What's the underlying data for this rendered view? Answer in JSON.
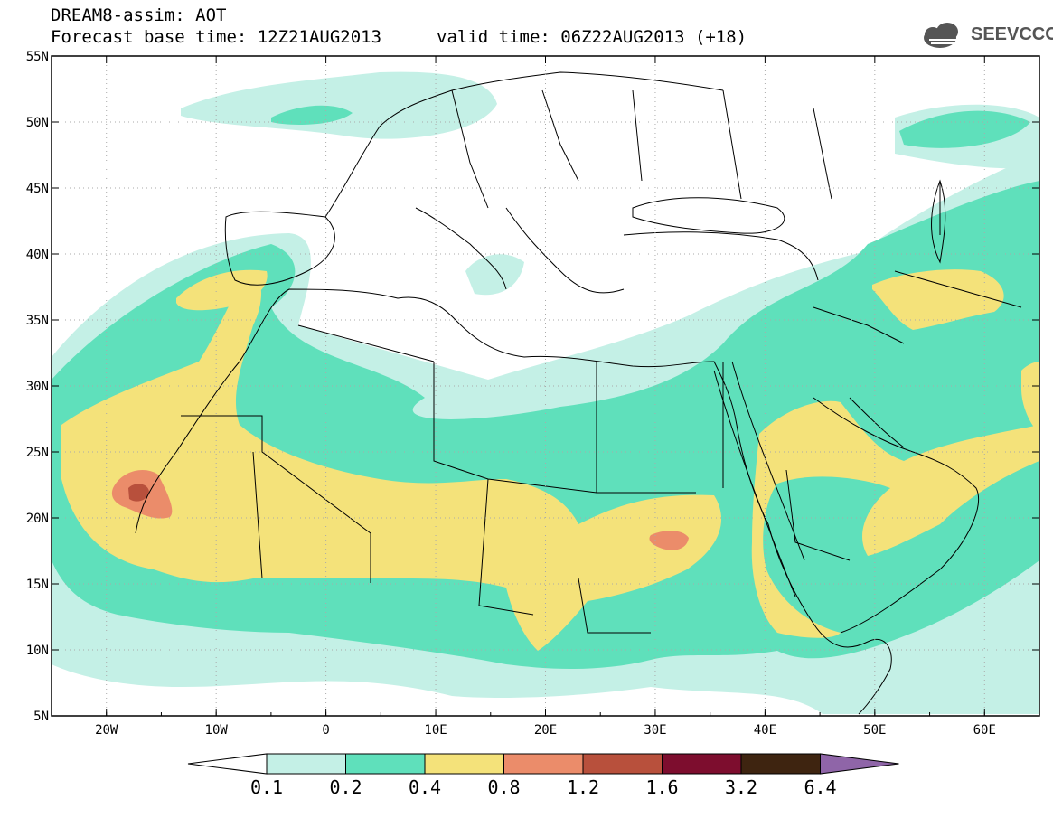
{
  "header": {
    "title": "DREAM8-assim: AOT",
    "base_time": "Forecast base time: 12Z21AUG2013",
    "valid_time": "valid time: 06Z22AUG2013 (+18)",
    "logo_text": "SEEVCCC"
  },
  "map": {
    "lon_range": [
      -25,
      65
    ],
    "lat_range": [
      5,
      55
    ],
    "lon_labels": [
      "20W",
      "10W",
      "0",
      "10E",
      "20E",
      "30E",
      "40E",
      "50E",
      "60E"
    ],
    "lat_labels": [
      "55N",
      "50N",
      "45N",
      "40N",
      "35N",
      "30N",
      "25N",
      "20N",
      "15N",
      "10N",
      "5N"
    ]
  },
  "colorbar": {
    "levels": [
      "0.1",
      "0.2",
      "0.4",
      "0.8",
      "1.2",
      "1.6",
      "3.2",
      "6.4"
    ],
    "colors": [
      "#ffffff",
      "#c4f0e6",
      "#5fe0bb",
      "#f4e27a",
      "#eb8c6a",
      "#b8503c",
      "#7d0d2e",
      "#3e2410",
      "#8f65a8"
    ]
  },
  "fill_colors": {
    "low": "#c4f0e6",
    "medium": "#5fe0bb",
    "high": "#f4e27a",
    "very_high": "#eb8c6a",
    "extreme": "#b8503c"
  }
}
